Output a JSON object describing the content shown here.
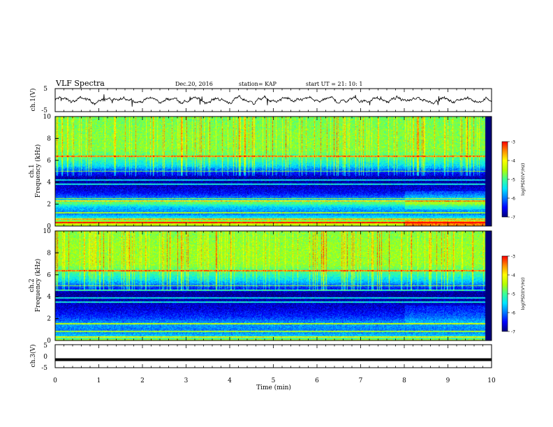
{
  "header": {
    "title": "VLF Spectra",
    "date": "Dec.20, 2016",
    "station": "station= KAP",
    "start": "start UT =  21: 10: 1"
  },
  "colors": {
    "colormap": [
      "#00007a",
      "#0000ff",
      "#0078ff",
      "#00e5ff",
      "#3cff96",
      "#b4ff00",
      "#ffff00",
      "#ff8c00",
      "#ff0000",
      "#ffffff"
    ]
  },
  "chart_data": [
    {
      "type": "line",
      "name": "ch1-waveform",
      "ylabel": "ch.1(V)",
      "ylim": [
        -5,
        5
      ],
      "yticks": [
        "5",
        "-5"
      ],
      "xlim": [
        0,
        10
      ],
      "mean": 0,
      "amplitude_approx": 1.8
    },
    {
      "type": "heatmap",
      "name": "ch1-spectrogram",
      "ylabel": "ch.1\nFrequency (kHz)",
      "ylim": [
        0,
        10
      ],
      "yticks": [
        "0",
        "2",
        "4",
        "6",
        "8",
        "10"
      ],
      "xlim": [
        0,
        10
      ],
      "colorbar": {
        "label": "log(PSD)(V²/Hz)",
        "range": [
          -7,
          -3
        ],
        "ticks": [
          "-3",
          "-4",
          "-5",
          "-6",
          "-7"
        ]
      },
      "profile": [
        {
          "f": 0.0,
          "v": -4.4
        },
        {
          "f": 0.3,
          "v": -4.3
        },
        {
          "f": 0.7,
          "v": -5.3
        },
        {
          "f": 1.1,
          "v": -6.0
        },
        {
          "f": 1.7,
          "v": -5.6
        },
        {
          "f": 2.1,
          "v": -4.8
        },
        {
          "f": 2.5,
          "v": -5.9
        },
        {
          "f": 3.0,
          "v": -6.5
        },
        {
          "f": 3.6,
          "v": -6.7
        },
        {
          "f": 4.3,
          "v": -6.9
        },
        {
          "f": 4.9,
          "v": -6.4
        },
        {
          "f": 5.5,
          "v": -5.5
        },
        {
          "f": 6.2,
          "v": -5.0
        },
        {
          "f": 7.0,
          "v": -4.7
        },
        {
          "f": 8.5,
          "v": -4.7
        },
        {
          "f": 10.0,
          "v": -4.8
        }
      ],
      "lines_khz": [
        0.3,
        0.6,
        1.2,
        2.3,
        2.5,
        3.8,
        4.2,
        5.0,
        6.4
      ]
    },
    {
      "type": "heatmap",
      "name": "ch2-spectrogram",
      "ylabel": "ch.2\nFrequency (kHz)",
      "ylim": [
        0,
        10
      ],
      "yticks": [
        "0",
        "2",
        "4",
        "6",
        "8",
        "10"
      ],
      "xlim": [
        0,
        10
      ],
      "colorbar": {
        "label": "log(PSD)(V²/Hz)",
        "range": [
          -7,
          -3
        ],
        "ticks": [
          "-3",
          "-4",
          "-5",
          "-6",
          "-7"
        ]
      },
      "profile": [
        {
          "f": 0.0,
          "v": -4.5
        },
        {
          "f": 0.3,
          "v": -5.5
        },
        {
          "f": 0.8,
          "v": -6.0
        },
        {
          "f": 1.5,
          "v": -5.8
        },
        {
          "f": 2.1,
          "v": -6.3
        },
        {
          "f": 2.8,
          "v": -6.6
        },
        {
          "f": 3.3,
          "v": -6.7
        },
        {
          "f": 3.7,
          "v": -6.8
        },
        {
          "f": 4.3,
          "v": -6.9
        },
        {
          "f": 4.9,
          "v": -6.2
        },
        {
          "f": 5.5,
          "v": -5.5
        },
        {
          "f": 6.2,
          "v": -5.0
        },
        {
          "f": 7.0,
          "v": -4.6
        },
        {
          "f": 8.5,
          "v": -4.6
        },
        {
          "f": 10.0,
          "v": -4.7
        }
      ],
      "lines_khz": [
        0.3,
        0.8,
        1.5,
        3.5,
        3.9,
        4.6,
        5.0,
        6.4
      ]
    },
    {
      "type": "line",
      "name": "ch3-waveform",
      "ylabel": "ch.3(V)",
      "ylim": [
        -5,
        5
      ],
      "yticks": [
        "5",
        "0",
        "-5"
      ],
      "xlim": [
        0,
        10
      ],
      "constant_value": -1.5,
      "xlabel": "Time (min)",
      "xticks": [
        "0",
        "1",
        "2",
        "3",
        "4",
        "5",
        "6",
        "7",
        "8",
        "9",
        "10"
      ]
    }
  ]
}
